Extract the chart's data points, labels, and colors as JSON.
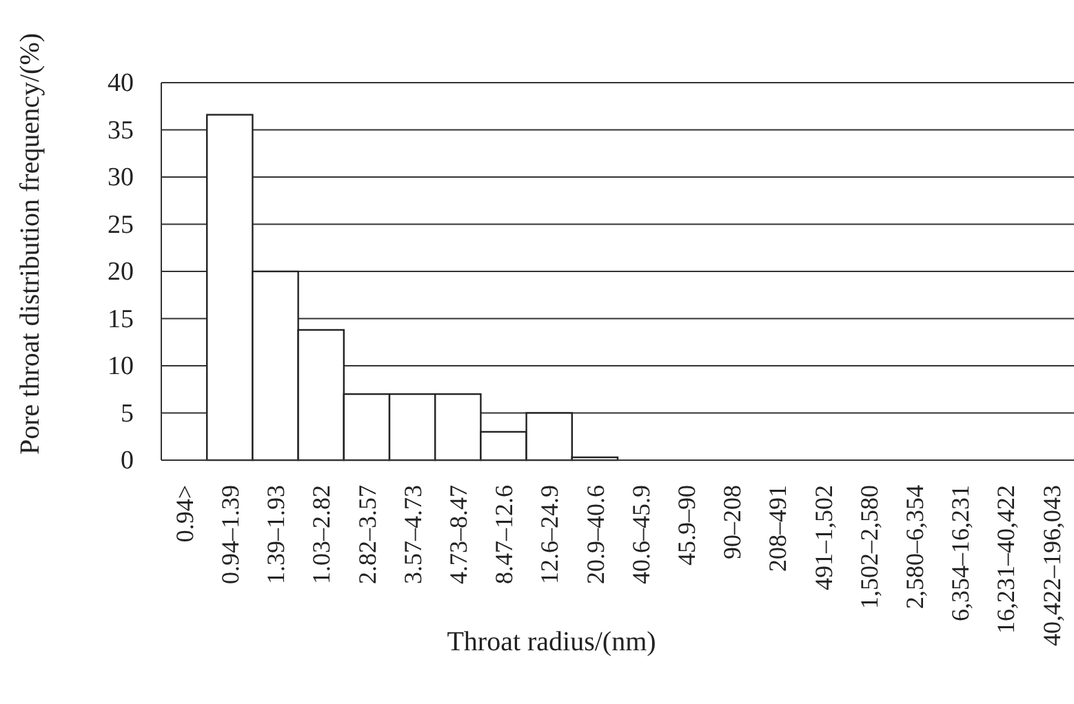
{
  "chart_data": {
    "type": "bar",
    "xlabel": "Throat radius/(nm)",
    "ylabel": "Pore throat distribution frequency/(%)",
    "categories": [
      "0.94>",
      "0.94–1.39",
      "1.39–1.93",
      "1.03–2.82",
      "2.82–3.57",
      "3.57–4.73",
      "4.73–8.47",
      "8.47–12.6",
      "12.6–24.9",
      "20.9–40.6",
      "40.6–45.9",
      "45.9–90",
      "90–208",
      "208–491",
      "491–1,502",
      "1,502–2,580",
      "2,580–6,354",
      "6,354–16,231",
      "16,231–40,422",
      "40,422–196,043"
    ],
    "values": [
      0,
      36.6,
      20,
      13.8,
      7,
      7,
      7,
      3,
      5,
      0.3,
      0,
      0,
      0,
      0,
      0,
      0,
      0,
      0,
      0,
      0
    ],
    "color": "#ffffff",
    "ylim": [
      0,
      40
    ],
    "yticks": [
      0,
      5,
      10,
      15,
      20,
      25,
      30,
      35,
      40
    ],
    "grid": "y"
  }
}
